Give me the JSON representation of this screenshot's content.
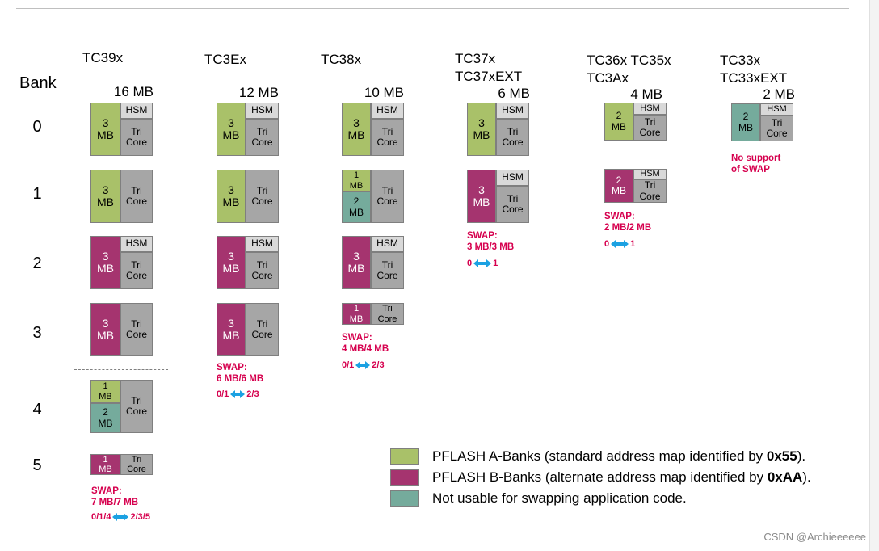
{
  "bank_label": "Bank",
  "bank_numbers": [
    "0",
    "1",
    "2",
    "3",
    "4",
    "5"
  ],
  "families": [
    {
      "name_lines": [
        "TC39x"
      ],
      "size": "16 MB"
    },
    {
      "name_lines": [
        "TC3Ex"
      ],
      "size": "12 MB"
    },
    {
      "name_lines": [
        "TC38x"
      ],
      "size": "10 MB"
    },
    {
      "name_lines": [
        "TC37x",
        "TC37xEXT"
      ],
      "size": "6 MB"
    },
    {
      "name_lines": [
        "TC36x TC35x",
        "TC3Ax"
      ],
      "size": "4 MB"
    },
    {
      "name_lines": [
        "TC33x",
        "TC33xEXT"
      ],
      "size": "2 MB"
    }
  ],
  "labels": {
    "hsm": "HSM",
    "tri": "Tri",
    "core": "Core",
    "mb": "MB",
    "one": "1",
    "two": "2",
    "three": "3"
  },
  "notes": {
    "tc39x_swap": [
      "SWAP:",
      "7 MB/7 MB"
    ],
    "tc39x_map": {
      "left": "0/1/4",
      "right": "2/3/5"
    },
    "tc3ex_swap": [
      "SWAP:",
      "6 MB/6 MB"
    ],
    "tc3ex_map": {
      "left": "0/1",
      "right": "2/3"
    },
    "tc38x_swap": [
      "SWAP:",
      "4 MB/4 MB"
    ],
    "tc38x_map": {
      "left": "0/1",
      "right": "2/3"
    },
    "tc37x_swap": [
      "SWAP:",
      "3 MB/3 MB"
    ],
    "tc37x_map": {
      "left": "0",
      "right": "1"
    },
    "tc36x_swap": [
      "SWAP:",
      "2 MB/2 MB"
    ],
    "tc36x_map": {
      "left": "0",
      "right": "1"
    },
    "tc33x_swap": [
      "No support",
      "of SWAP"
    ]
  },
  "legend": [
    {
      "color": "#a9c169",
      "text": "PFLASH A-Banks (standard address map identified by ",
      "code": "0x55",
      "suffix": ")."
    },
    {
      "color": "#a5346f",
      "text": "PFLASH B-Banks (alternate address map identified by ",
      "code": "0xAA",
      "suffix": ")."
    },
    {
      "color": "#75ab9c",
      "text": "Not usable for swapping application code.",
      "code": "",
      "suffix": ""
    }
  ],
  "colors": {
    "a_bank": "#a9c169",
    "b_bank": "#a5346f",
    "not_usable": "#75ab9c",
    "tricore": "#a6a6a6",
    "hsm": "#d9d9d9",
    "note_text": "#d6004e",
    "arrow": "#1ba1e2"
  },
  "watermark": "CSDN @Archieeeeee"
}
